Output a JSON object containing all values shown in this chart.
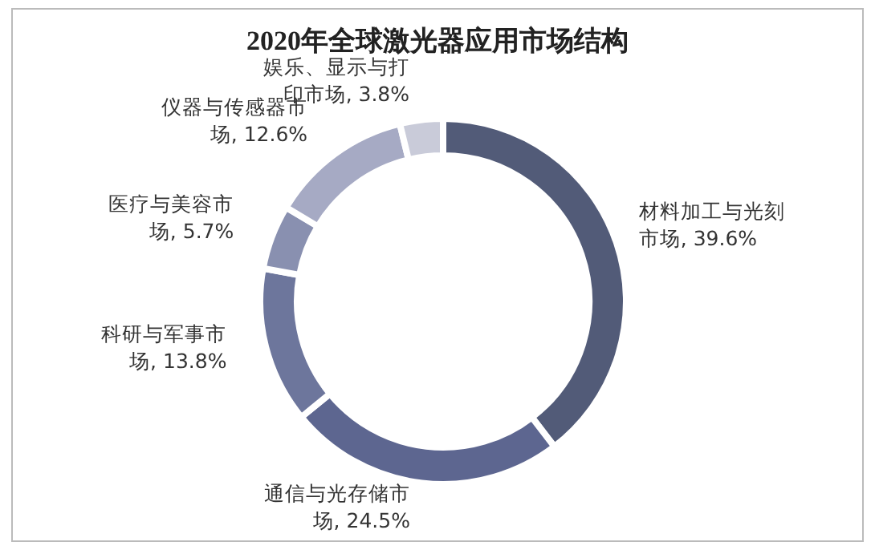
{
  "chart_data": {
    "type": "donut",
    "title": "2020年全球激光器应用市场结构",
    "categories": [
      "材料加工与光刻市场",
      "通信与光存储市场",
      "科研与军事市场",
      "医疗与美容市场",
      "仪器与传感器市场",
      "娱乐、显示与打印市场"
    ],
    "values": [
      39.6,
      24.5,
      13.8,
      5.7,
      12.6,
      3.8
    ],
    "value_labels": [
      "39.6%",
      "24.5%",
      "13.8%",
      "5.7%",
      "12.6%",
      "3.8%"
    ],
    "colors": [
      "#525b78",
      "#5d6690",
      "#6d769c",
      "#8990b0",
      "#a6aac4",
      "#c9cbd9"
    ],
    "legend": false
  }
}
